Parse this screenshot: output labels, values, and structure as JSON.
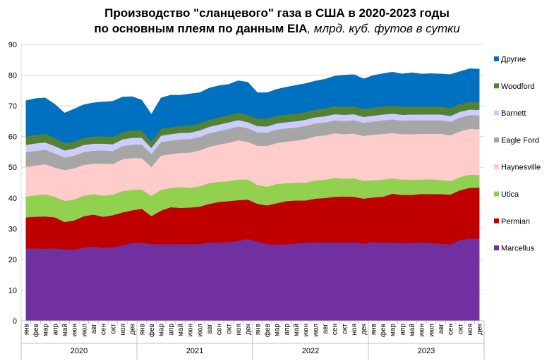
{
  "title": {
    "line1": "Производство \"сланцевого\" газа в США в 2020-2023 годы",
    "line2_bold": "по основным плеям по данным EIA",
    "line2_unit": ", млрд. куб. футов в сутки"
  },
  "chart_data": {
    "type": "area",
    "stacked": true,
    "ylim": [
      0,
      90
    ],
    "yticks": [
      0,
      10,
      20,
      30,
      40,
      50,
      60,
      70,
      80,
      90
    ],
    "grid": true,
    "legend_position": "right",
    "month_labels": [
      "янв",
      "фев",
      "мар",
      "апр",
      "май",
      "июн",
      "июл",
      "авг",
      "сен",
      "окт",
      "ноя",
      "дек"
    ],
    "years": [
      "2020",
      "2021",
      "2022",
      "2023"
    ],
    "series": [
      {
        "name": "Marcellus",
        "color": "#7030A0",
        "values": [
          23.5,
          23.6,
          23.5,
          23.6,
          23.3,
          23.1,
          23.9,
          24.2,
          23.8,
          24.0,
          24.6,
          25.4,
          25.4,
          25.0,
          25.0,
          25.0,
          25.0,
          25.0,
          25.0,
          25.5,
          25.6,
          25.6,
          26.0,
          26.7,
          25.8,
          25.0,
          24.8,
          25.0,
          25.2,
          25.4,
          25.6,
          25.5,
          25.5,
          25.5,
          25.5,
          25.1,
          25.7,
          25.4,
          25.5,
          25.2,
          25.4,
          25.5,
          25.3,
          25.1,
          24.9,
          26.3,
          26.8,
          26.8
        ]
      },
      {
        "name": "Permian",
        "color": "#C00000",
        "values": [
          10.2,
          10.3,
          10.5,
          10.1,
          8.9,
          9.6,
          10.2,
          10.4,
          10.1,
          10.4,
          10.7,
          10.6,
          11.1,
          9.1,
          10.9,
          12.0,
          11.8,
          11.9,
          12.2,
          12.6,
          13.1,
          13.4,
          13.3,
          12.8,
          12.3,
          12.6,
          13.5,
          14.0,
          14.0,
          13.8,
          14.2,
          14.5,
          14.9,
          15.0,
          14.9,
          14.7,
          14.5,
          15.0,
          15.9,
          15.8,
          15.6,
          15.8,
          16.0,
          16.2,
          16.2,
          16.2,
          16.5,
          16.6
        ]
      },
      {
        "name": "Utica",
        "color": "#92D050",
        "values": [
          6.8,
          7.0,
          7.2,
          6.7,
          6.9,
          6.8,
          6.7,
          6.6,
          6.9,
          6.7,
          7.0,
          6.6,
          6.3,
          6.6,
          6.8,
          6.3,
          6.8,
          6.4,
          6.6,
          6.8,
          6.6,
          6.5,
          6.7,
          6.6,
          6.1,
          6.1,
          6.3,
          5.8,
          5.8,
          5.8,
          5.9,
          6.0,
          6.1,
          5.8,
          6.0,
          5.8,
          5.6,
          5.6,
          5.0,
          5.0,
          5.0,
          4.7,
          4.8,
          4.6,
          4.4,
          4.3,
          4.3,
          4.1
        ]
      },
      {
        "name": "Haynesville",
        "color": "#FFCCCC",
        "values": [
          9.6,
          9.7,
          9.8,
          9.5,
          10.0,
          10.2,
          10.0,
          10.0,
          10.4,
          10.0,
          10.3,
          10.4,
          10.2,
          9.4,
          11.1,
          11.0,
          11.1,
          11.5,
          11.7,
          11.8,
          12.1,
          12.5,
          12.8,
          12.2,
          12.8,
          13.3,
          13.3,
          13.6,
          13.7,
          14.2,
          14.4,
          14.4,
          14.6,
          14.5,
          14.6,
          14.6,
          14.8,
          14.9,
          14.8,
          14.8,
          14.8,
          14.9,
          14.8,
          15.0,
          14.9,
          14.9,
          14.9,
          14.9
        ]
      },
      {
        "name": "Eagle Ford",
        "color": "#A6A6A6",
        "values": [
          4.8,
          4.8,
          4.7,
          4.6,
          4.1,
          4.1,
          4.2,
          4.2,
          4.3,
          4.2,
          4.3,
          4.4,
          4.4,
          4.2,
          4.4,
          4.4,
          4.4,
          4.4,
          4.4,
          4.4,
          4.4,
          4.5,
          4.5,
          4.4,
          4.4,
          4.3,
          4.4,
          4.3,
          4.3,
          4.3,
          4.2,
          4.2,
          4.2,
          4.3,
          4.3,
          4.3,
          4.3,
          4.4,
          4.4,
          4.4,
          4.5,
          4.4,
          4.4,
          4.4,
          4.4,
          4.5,
          4.5,
          4.5
        ]
      },
      {
        "name": "Barnett",
        "color": "#CCCCFF",
        "values": [
          2.4,
          2.4,
          2.4,
          2.4,
          2.3,
          2.3,
          2.3,
          2.3,
          2.2,
          2.2,
          2.2,
          2.2,
          2.2,
          2.0,
          2.1,
          2.1,
          2.1,
          2.1,
          2.1,
          2.1,
          2.1,
          2.1,
          2.1,
          2.0,
          2.0,
          2.0,
          2.0,
          2.0,
          2.0,
          2.0,
          2.0,
          2.0,
          2.0,
          2.0,
          2.0,
          1.9,
          1.9,
          1.9,
          1.9,
          1.9,
          1.9,
          1.9,
          1.9,
          1.9,
          1.9,
          1.9,
          1.8,
          1.8
        ]
      },
      {
        "name": "Woodford",
        "color": "#548235",
        "values": [
          2.8,
          2.8,
          2.8,
          2.6,
          2.4,
          2.3,
          2.3,
          2.3,
          2.4,
          2.4,
          2.4,
          2.4,
          2.4,
          2.1,
          2.3,
          2.3,
          2.3,
          2.3,
          2.3,
          2.3,
          2.4,
          2.4,
          2.4,
          2.4,
          2.5,
          2.5,
          2.5,
          2.5,
          2.5,
          2.5,
          2.5,
          2.6,
          2.6,
          2.6,
          2.6,
          2.6,
          2.6,
          2.6,
          2.6,
          2.6,
          2.6,
          2.6,
          2.6,
          2.6,
          2.6,
          2.6,
          2.6,
          2.6
        ]
      },
      {
        "name": "Другие",
        "color": "#0070C0",
        "values": [
          11.6,
          11.8,
          11.7,
          11.0,
          9.8,
          10.6,
          10.8,
          11.0,
          11.2,
          11.6,
          11.4,
          11.0,
          9.9,
          8.9,
          10.0,
          10.4,
          10.0,
          10.3,
          10.0,
          10.3,
          10.3,
          10.0,
          10.4,
          10.6,
          8.4,
          8.5,
          8.6,
          8.9,
          9.2,
          9.3,
          9.3,
          9.5,
          9.8,
          10.3,
          10.3,
          9.8,
          10.5,
          10.7,
          10.9,
          10.7,
          11.0,
          10.6,
          10.7,
          10.6,
          10.9,
          10.5,
          10.7,
          10.7
        ]
      }
    ]
  }
}
